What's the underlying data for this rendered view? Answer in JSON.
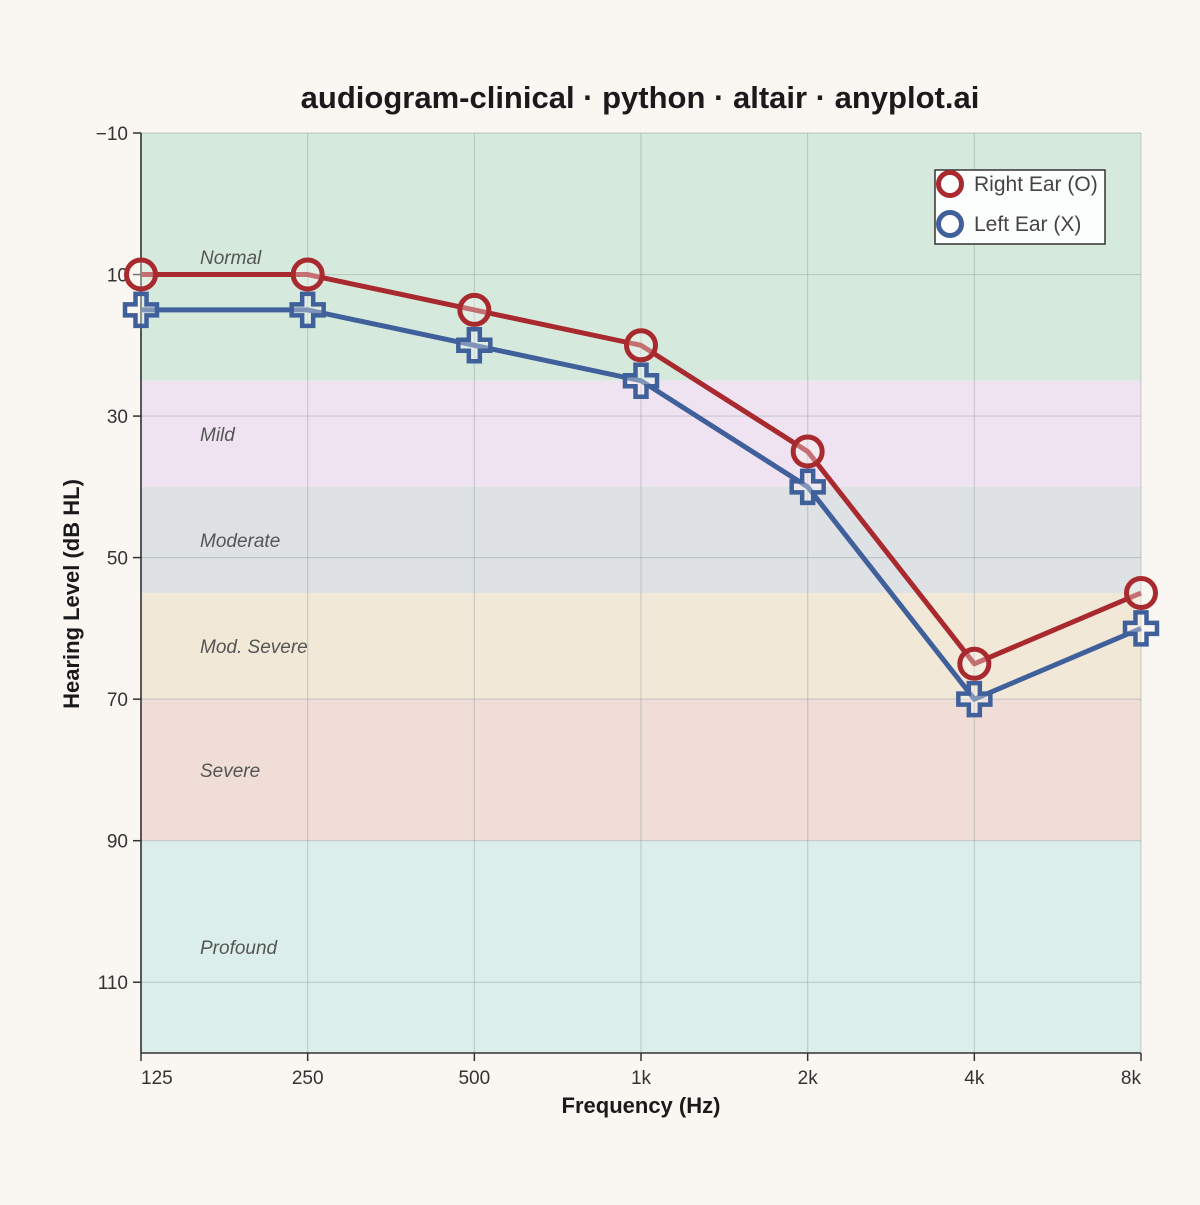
{
  "chart_data": {
    "type": "line",
    "title": "audiogram-clinical · python · altair · anyplot.ai",
    "xlabel": "Frequency (Hz)",
    "ylabel": "Hearing Level (dB HL)",
    "x_scale": "log2",
    "y_reversed": true,
    "ylim": [
      -10,
      120
    ],
    "y_ticks": [
      -10,
      10,
      30,
      50,
      70,
      90,
      110
    ],
    "y_tick_labels": [
      "−10",
      "10",
      "30",
      "50",
      "70",
      "90",
      "110"
    ],
    "x": [
      125,
      250,
      500,
      1000,
      2000,
      4000,
      8000
    ],
    "x_tick_labels": [
      "125",
      "250",
      "500",
      "1k",
      "2k",
      "4k",
      "8k"
    ],
    "grid": true,
    "legend_position": "top-right",
    "series": [
      {
        "name": "Right Ear (O)",
        "marker": "circle",
        "color": "#a8292e",
        "values": [
          10,
          10,
          15,
          20,
          35,
          65,
          55
        ]
      },
      {
        "name": "Left Ear (X)",
        "marker": "cross",
        "color": "#40609c",
        "values": [
          15,
          15,
          20,
          25,
          40,
          70,
          60
        ]
      }
    ],
    "bands": [
      {
        "label": "Normal",
        "from": -10,
        "to": 25,
        "color": "#d5eadd"
      },
      {
        "label": "Mild",
        "from": 25,
        "to": 40,
        "color": "#f0e3f1"
      },
      {
        "label": "Moderate",
        "from": 40,
        "to": 55,
        "color": "#dfe2e5"
      },
      {
        "label": "Mod. Severe",
        "from": 55,
        "to": 70,
        "color": "#f1e8d8"
      },
      {
        "label": "Severe",
        "from": 70,
        "to": 90,
        "color": "#f0ddd7"
      },
      {
        "label": "Profound",
        "from": 90,
        "to": 120,
        "color": "#dceeea"
      }
    ]
  }
}
